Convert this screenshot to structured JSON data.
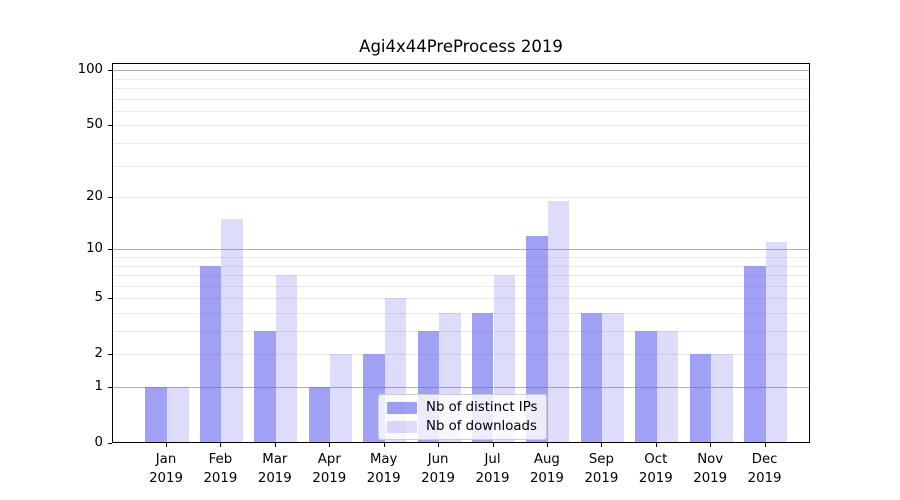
{
  "page": {
    "background": "#ffffff"
  },
  "chart_data": {
    "type": "bar",
    "title": "Agi4x44PreProcess 2019",
    "categories": [
      "Jan 2019",
      "Feb 2019",
      "Mar 2019",
      "Apr 2019",
      "May 2019",
      "Jun 2019",
      "Jul 2019",
      "Aug 2019",
      "Sep 2019",
      "Oct 2019",
      "Nov 2019",
      "Dec 2019"
    ],
    "series": [
      {
        "name": "Nb of distinct IPs",
        "color": "rgba(102,102,238,0.62)",
        "values": [
          1,
          8,
          3,
          1,
          2,
          3,
          4,
          12,
          4,
          3,
          2,
          8
        ]
      },
      {
        "name": "Nb of downloads",
        "color": "rgba(102,102,238,0.22)",
        "values": [
          1,
          15,
          7,
          2,
          5,
          4,
          7,
          19,
          4,
          3,
          2,
          11
        ]
      }
    ],
    "xlabel": "",
    "ylabel": "",
    "yscale": "log1p",
    "ylim": [
      0,
      110
    ],
    "yticks": [
      0,
      1,
      2,
      5,
      10,
      20,
      50,
      100
    ],
    "grid": "on",
    "grid_major_values": [
      1,
      10,
      100
    ],
    "grid_minor_values": [
      2,
      3,
      4,
      5,
      6,
      7,
      8,
      9,
      20,
      30,
      40,
      50,
      60,
      70,
      80,
      90
    ],
    "legend_position": "lower center",
    "colors": {
      "grid_major": "#b0b0b0",
      "grid_minor": "#e9e9e9",
      "spine": "#000000",
      "bar_base": "#6666ee"
    }
  }
}
